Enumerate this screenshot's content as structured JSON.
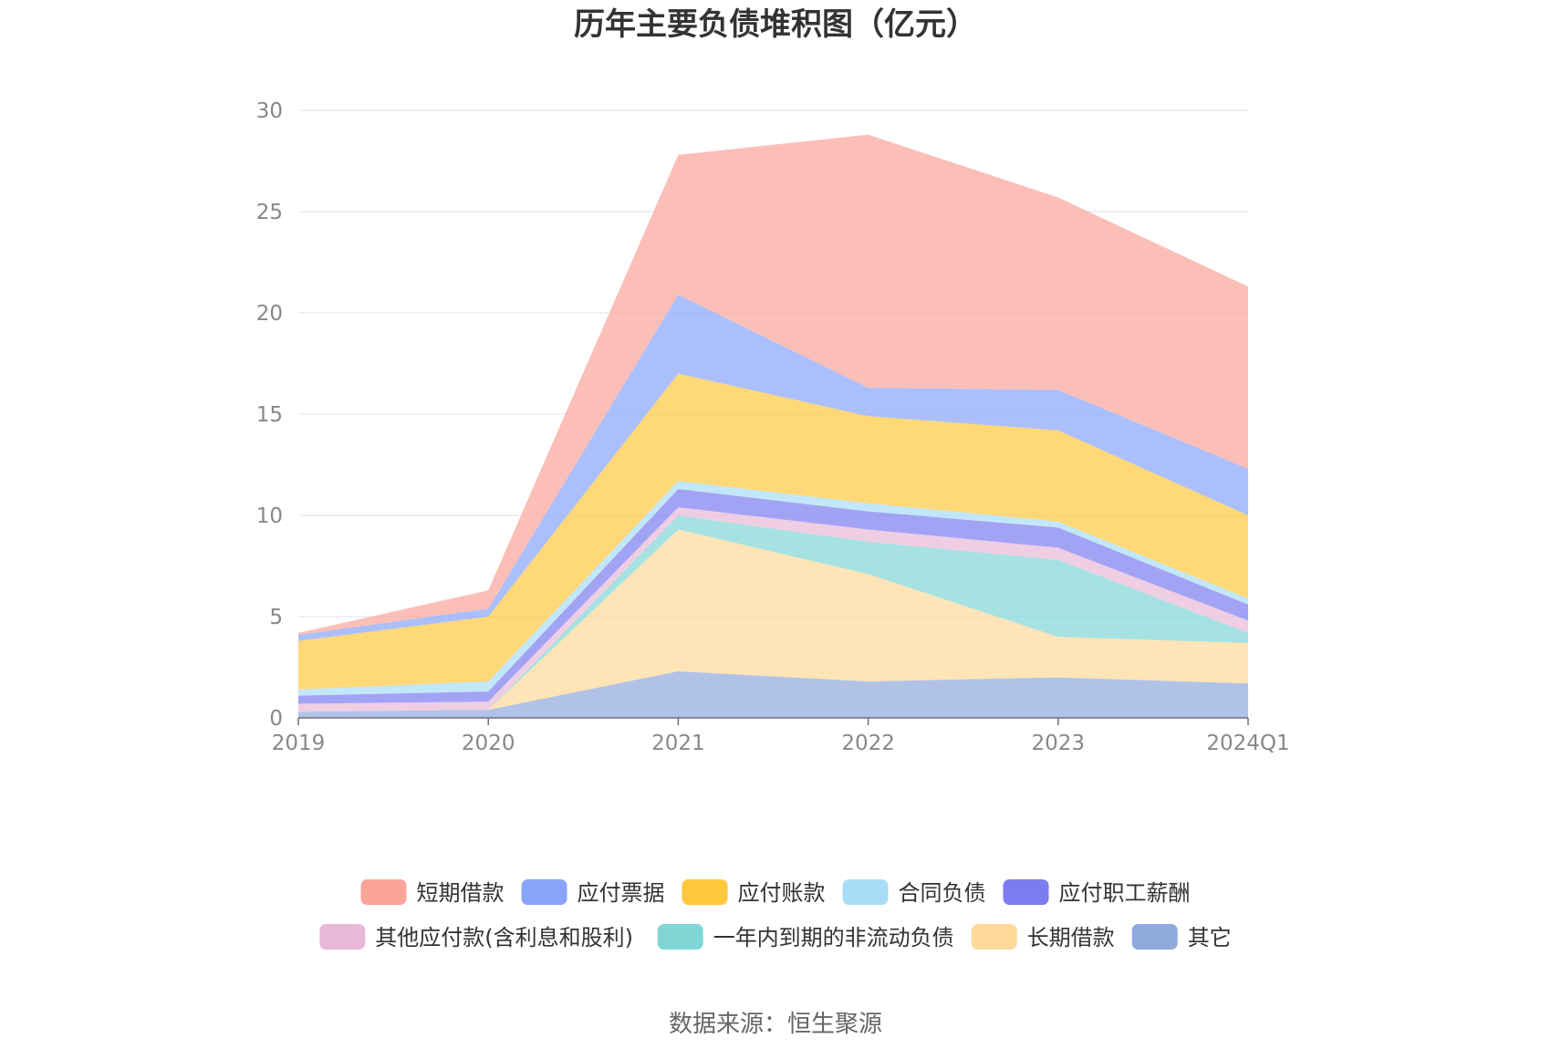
{
  "chart_data": {
    "type": "area",
    "stacked": true,
    "title": "历年主要负债堆积图（亿元）",
    "categories": [
      "2019",
      "2020",
      "2021",
      "2022",
      "2023",
      "2024Q1"
    ],
    "ylim": [
      0,
      30
    ],
    "yticks": [
      0,
      5,
      10,
      15,
      20,
      25,
      30
    ],
    "grid": true,
    "legend_position": "bottom",
    "series": [
      {
        "name": "其它",
        "color": "#8faadc",
        "values": [
          0.3,
          0.4,
          2.3,
          1.8,
          2.0,
          1.7
        ]
      },
      {
        "name": "长期借款",
        "color": "#ffd999",
        "values": [
          0.0,
          0.0,
          7.0,
          5.3,
          2.0,
          2.0
        ]
      },
      {
        "name": "一年内到期的非流动负债",
        "color": "#80d6d4",
        "values": [
          0.0,
          0.0,
          0.7,
          1.6,
          3.8,
          0.5
        ]
      },
      {
        "name": "其他应付款(含利息和股利)",
        "color": "#e8b9d8",
        "values": [
          0.4,
          0.4,
          0.4,
          0.6,
          0.6,
          0.6
        ]
      },
      {
        "name": "应付职工薪酬",
        "color": "#7b7cf0",
        "values": [
          0.4,
          0.5,
          0.9,
          0.9,
          1.0,
          0.8
        ]
      },
      {
        "name": "合同负债",
        "color": "#a8ddf7",
        "values": [
          0.3,
          0.5,
          0.4,
          0.4,
          0.3,
          0.3
        ]
      },
      {
        "name": "应付账款",
        "color": "#ffc83d",
        "values": [
          2.4,
          3.2,
          5.3,
          4.3,
          4.5,
          4.1
        ]
      },
      {
        "name": "应付票据",
        "color": "#88a4fb",
        "values": [
          0.3,
          0.4,
          3.9,
          1.4,
          2.0,
          2.3
        ]
      },
      {
        "name": "短期借款",
        "color": "#fba49a",
        "values": [
          0.1,
          0.9,
          6.9,
          12.5,
          9.5,
          9.0
        ]
      }
    ],
    "legend_order": [
      "短期借款",
      "应付票据",
      "应付账款",
      "合同负债",
      "应付职工薪酬",
      "其他应付款(含利息和股利)",
      "一年内到期的非流动负债",
      "长期借款",
      "其它"
    ]
  },
  "footer": {
    "source": "数据来源：恒生聚源"
  }
}
